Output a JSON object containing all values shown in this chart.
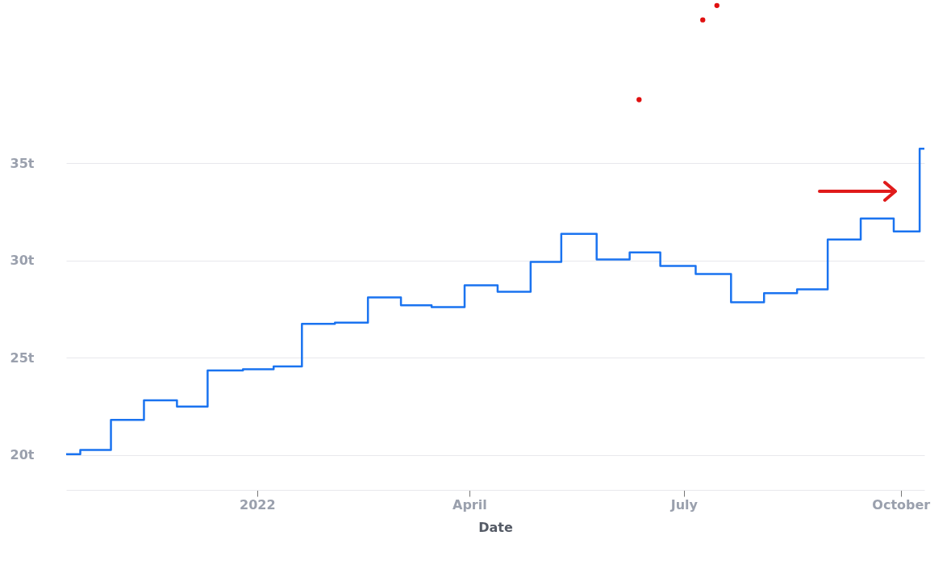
{
  "chart_data": {
    "type": "step",
    "xlabel": "Date",
    "xlim": [
      "2021-10-12",
      "2022-10-11"
    ],
    "ylim": [
      18.2,
      43.3
    ],
    "xticks": [
      {
        "value": "2022-01-01",
        "label": "2022"
      },
      {
        "value": "2022-04-01",
        "label": "April"
      },
      {
        "value": "2022-07-01",
        "label": "July"
      },
      {
        "value": "2022-10-01",
        "label": "October"
      }
    ],
    "yticks": [
      {
        "value": 20,
        "label": "20t"
      },
      {
        "value": 25,
        "label": "25t"
      },
      {
        "value": 30,
        "label": "30t"
      },
      {
        "value": 35,
        "label": "35t"
      }
    ],
    "grid": "y",
    "series": [
      {
        "color": "#1a73f0",
        "x": [
          "2021-10-12",
          "2021-10-18",
          "2021-10-31",
          "2021-11-14",
          "2021-11-28",
          "2021-12-11",
          "2021-12-26",
          "2022-01-08",
          "2022-01-20",
          "2022-02-03",
          "2022-02-17",
          "2022-03-03",
          "2022-03-16",
          "2022-03-30",
          "2022-04-13",
          "2022-04-27",
          "2022-05-10",
          "2022-05-25",
          "2022-06-08",
          "2022-06-21",
          "2022-07-06",
          "2022-07-21",
          "2022-08-04",
          "2022-08-18",
          "2022-08-31",
          "2022-09-14",
          "2022-09-28",
          "2022-10-09",
          "2022-10-11"
        ],
        "values": [
          20.04,
          20.25,
          21.8,
          22.8,
          22.48,
          24.34,
          24.4,
          24.55,
          26.74,
          26.8,
          28.1,
          27.69,
          27.6,
          28.72,
          28.39,
          29.92,
          31.36,
          30.04,
          30.41,
          29.71,
          29.3,
          27.85,
          28.31,
          28.51,
          31.07,
          32.15,
          31.49,
          35.74,
          35.74
        ]
      },
      {
        "type": "scatter",
        "color": "#e01010",
        "x": [
          "2022-06-12",
          "2022-07-09",
          "2022-07-15"
        ],
        "values": [
          38.26,
          42.36,
          43.1
        ]
      }
    ]
  }
}
